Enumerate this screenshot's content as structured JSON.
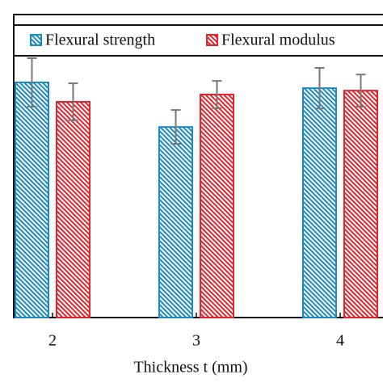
{
  "chart_data": {
    "type": "bar",
    "categories": [
      "2",
      "3",
      "4"
    ],
    "series": [
      {
        "name": "Flexural strength",
        "color": "#1b8ac4",
        "values": [
          77.6,
          62.9,
          75.7
        ],
        "errors": [
          8.0,
          5.6,
          6.7
        ]
      },
      {
        "name": "Flexural modulus",
        "color": "#e0262c",
        "values": [
          71.2,
          73.6,
          74.9
        ],
        "errors": [
          6.1,
          4.5,
          5.3
        ]
      }
    ],
    "x_label": "Thickness t (mm)",
    "ylim": [
      0,
      100
    ]
  }
}
